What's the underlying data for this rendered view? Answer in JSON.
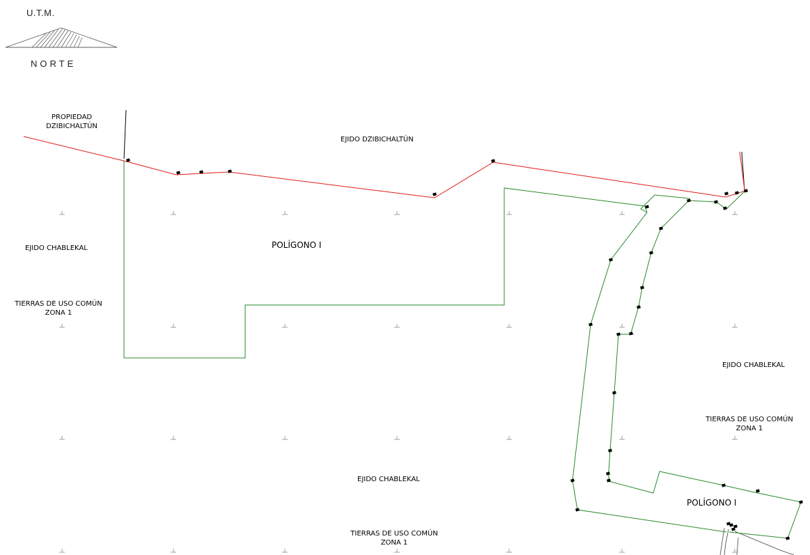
{
  "north_arrow": {
    "title": "U.T.M.",
    "label": "NORTE",
    "icon": "north-arrow-icon"
  },
  "labels": {
    "propiedad": [
      "PROPIEDAD",
      "DZIBICHALTÚN"
    ],
    "ejido_dzibichaltun": "EJIDO DZIBICHALTÚN",
    "ejido_chablekal_west": "EJIDO CHABLEKAL",
    "poligono_main": "POLÍGONO I",
    "tierras_west": [
      "TIERRAS DE USO COMÚN",
      "ZONA 1"
    ],
    "ejido_chablekal_east": "EJIDO CHABLEKAL",
    "tierras_east": [
      "TIERRAS DE USO COMÚN",
      "ZONA 1"
    ],
    "ejido_chablekal_south": "EJIDO CHABLEKAL",
    "poligono_southeast": "POLÍGONO I",
    "tierras_south": [
      "TIERRAS DE USO COMÚN",
      "ZONA 1"
    ]
  },
  "colors": {
    "boundary_red": "#e11b1b",
    "polygon_green": "#2a8a2a",
    "neighbor_line": "#000000",
    "grid_tick": "#8a8a8a",
    "vertex_marker": "#000000"
  }
}
